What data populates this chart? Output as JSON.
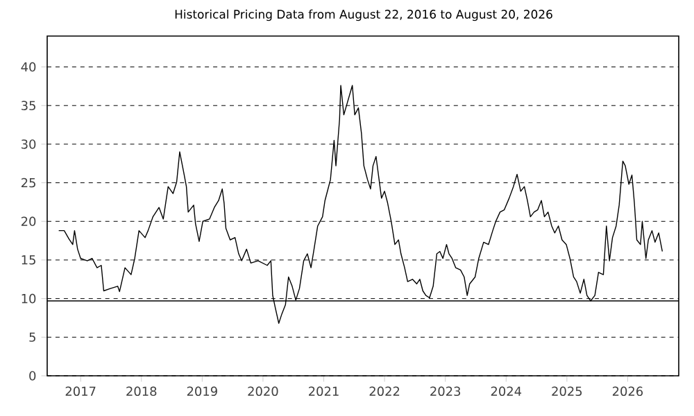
{
  "chart_data": {
    "type": "line",
    "title": "Historical Pricing Data from August 22, 2016 to August 20, 2026",
    "x": [
      2016.64,
      2016.73,
      2016.81,
      2016.87,
      2016.9,
      2016.95,
      2017.0,
      2017.11,
      2017.19,
      2017.27,
      2017.34,
      2017.38,
      2017.49,
      2017.61,
      2017.64,
      2017.73,
      2017.83,
      2017.89,
      2017.96,
      2018.06,
      2018.11,
      2018.19,
      2018.29,
      2018.36,
      2018.44,
      2018.52,
      2018.58,
      2018.63,
      2018.69,
      2018.74,
      2018.77,
      2018.86,
      2018.89,
      2018.95,
      2019.01,
      2019.12,
      2019.2,
      2019.27,
      2019.33,
      2019.36,
      2019.39,
      2019.46,
      2019.54,
      2019.6,
      2019.65,
      2019.73,
      2019.8,
      2019.92,
      2020.07,
      2020.13,
      2020.16,
      2020.2,
      2020.26,
      2020.31,
      2020.37,
      2020.42,
      2020.48,
      2020.54,
      2020.6,
      2020.67,
      2020.73,
      2020.79,
      2020.84,
      2020.9,
      2020.98,
      2021.02,
      2021.07,
      2021.11,
      2021.17,
      2021.2,
      2021.26,
      2021.28,
      2021.33,
      2021.47,
      2021.51,
      2021.57,
      2021.62,
      2021.66,
      2021.72,
      2021.77,
      2021.81,
      2021.86,
      2021.91,
      2021.95,
      2022.0,
      2022.05,
      2022.11,
      2022.17,
      2022.23,
      2022.27,
      2022.33,
      2022.38,
      2022.46,
      2022.53,
      2022.58,
      2022.63,
      2022.68,
      2022.74,
      2022.8,
      2022.86,
      2022.91,
      2022.96,
      2023.02,
      2023.06,
      2023.11,
      2023.17,
      2023.25,
      2023.31,
      2023.36,
      2023.4,
      2023.49,
      2023.55,
      2023.63,
      2023.71,
      2023.78,
      2023.83,
      2023.9,
      2023.97,
      2024.05,
      2024.12,
      2024.18,
      2024.24,
      2024.3,
      2024.35,
      2024.4,
      2024.46,
      2024.52,
      2024.58,
      2024.63,
      2024.69,
      2024.75,
      2024.8,
      2024.86,
      2024.92,
      2024.99,
      2025.05,
      2025.11,
      2025.16,
      2025.22,
      2025.28,
      2025.33,
      2025.39,
      2025.46,
      2025.52,
      2025.6,
      2025.65,
      2025.7,
      2025.75,
      2025.81,
      2025.86,
      2025.92,
      2025.96,
      2026.02,
      2026.07,
      2026.11,
      2026.15,
      2026.21,
      2026.24,
      2026.3,
      2026.34,
      2026.4,
      2026.45,
      2026.51,
      2026.57
    ],
    "series": [
      {
        "color": "#000000",
        "values": [
          18.8,
          18.8,
          17.7,
          17.0,
          18.8,
          16.4,
          15.2,
          14.9,
          15.2,
          14.0,
          14.3,
          11.0,
          11.3,
          11.6,
          10.9,
          14.0,
          13.1,
          15.2,
          18.8,
          17.9,
          18.8,
          20.6,
          21.8,
          20.3,
          24.5,
          23.6,
          25.1,
          29.0,
          26.6,
          24.5,
          21.2,
          22.1,
          19.7,
          17.4,
          20.0,
          20.3,
          21.8,
          22.7,
          24.2,
          22.4,
          19.1,
          17.6,
          17.9,
          15.8,
          14.9,
          16.4,
          14.6,
          14.9,
          14.3,
          14.9,
          10.4,
          8.9,
          6.8,
          8.0,
          9.2,
          12.8,
          11.6,
          9.8,
          11.3,
          14.9,
          15.8,
          14.0,
          16.4,
          19.4,
          20.6,
          22.7,
          24.2,
          25.4,
          30.5,
          27.2,
          33.2,
          37.6,
          33.8,
          37.6,
          33.8,
          34.7,
          31.4,
          27.2,
          25.4,
          24.2,
          27.2,
          28.4,
          25.4,
          23.0,
          23.9,
          22.4,
          20.0,
          17.0,
          17.6,
          15.8,
          14.0,
          12.2,
          12.5,
          11.9,
          12.5,
          11.0,
          10.4,
          10.1,
          11.6,
          15.8,
          16.1,
          15.2,
          17.0,
          15.8,
          15.2,
          14.0,
          13.7,
          12.8,
          10.4,
          11.9,
          12.8,
          15.2,
          17.3,
          17.0,
          18.8,
          20.0,
          21.2,
          21.5,
          23.0,
          24.5,
          26.1,
          23.9,
          24.5,
          22.7,
          20.6,
          21.2,
          21.5,
          22.7,
          20.6,
          21.2,
          19.4,
          18.5,
          19.4,
          17.6,
          17.0,
          15.2,
          12.8,
          12.2,
          10.7,
          12.5,
          10.4,
          9.7,
          10.4,
          13.4,
          13.1,
          19.4,
          14.9,
          17.9,
          19.4,
          22.1,
          27.8,
          27.2,
          24.8,
          26.0,
          22.4,
          17.6,
          17.0,
          20.0,
          15.2,
          17.6,
          18.8,
          17.3,
          18.5,
          16.1
        ]
      }
    ],
    "xlim": [
      2016.45,
      2026.84
    ],
    "ylim": [
      0,
      44
    ],
    "xticks": [
      2017,
      2018,
      2019,
      2020,
      2021,
      2022,
      2023,
      2024,
      2025,
      2026
    ],
    "yticks": [
      0,
      5,
      10,
      15,
      20,
      25,
      30,
      35,
      40
    ],
    "grid": "y",
    "line_style": "solid",
    "marker": "none",
    "ref_lines": [
      {
        "axis": "y",
        "value": 9.7,
        "color": "#000000"
      }
    ]
  }
}
